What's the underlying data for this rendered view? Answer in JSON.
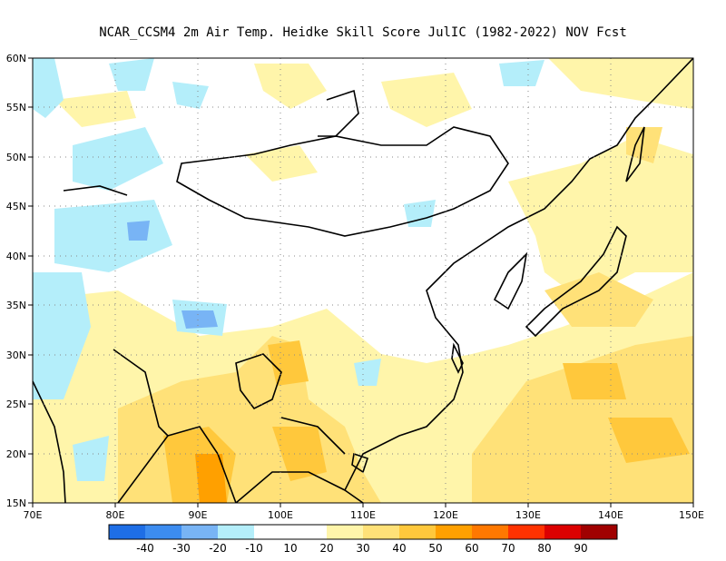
{
  "title": "NCAR_CCSM4  2m Air Temp. Heidke Skill Score JulIC (1982-2022) NOV Fcst",
  "map": {
    "lon_range": [
      70,
      150
    ],
    "lat_range": [
      15,
      60
    ],
    "x_tick_labels": [
      "70E",
      "80E",
      "90E",
      "100E",
      "110E",
      "120E",
      "130E",
      "140E",
      "150E"
    ],
    "y_tick_labels": [
      "15N",
      "20N",
      "25N",
      "30N",
      "35N",
      "40N",
      "45N",
      "50N",
      "55N",
      "60N"
    ],
    "grid": "dotted"
  },
  "colorbar": {
    "labels": [
      "-40",
      "-30",
      "-20",
      "-10",
      "10",
      "20",
      "30",
      "40",
      "50",
      "60",
      "70",
      "80",
      "90"
    ],
    "colors": [
      "#1e6ee6",
      "#3c8cf0",
      "#78b4f5",
      "#b4eefa",
      "#ffffff",
      "#fff5aa",
      "#ffe178",
      "#ffc83c",
      "#ffa000",
      "#ff7800",
      "#ff3200",
      "#dc0000",
      "#a00000"
    ]
  }
}
